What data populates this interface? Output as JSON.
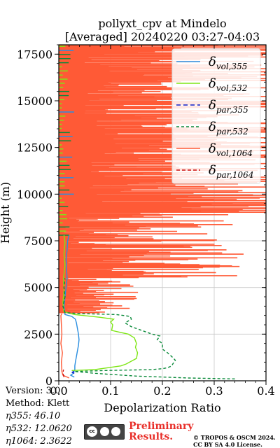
{
  "chart_data": {
    "type": "line",
    "title": "pollyxt_cpv at Mindelo",
    "subtitle": "[Averaged] 20240220 03:27-04:03",
    "xlabel": "Depolarization Ratio",
    "ylabel": "Height (m)",
    "xlim": [
      0.0,
      0.4
    ],
    "ylim": [
      0,
      18000
    ],
    "xticks": [
      "0.0",
      "0.1",
      "0.2",
      "0.3",
      "0.4"
    ],
    "yticks": [
      "0",
      "2500",
      "5000",
      "7500",
      "10000",
      "12500",
      "15000",
      "17500"
    ],
    "grid": true,
    "legend_position": "top-right",
    "series": [
      {
        "name": "δvol,355",
        "color": "#2a8ee0",
        "dash": "solid",
        "points": [
          [
            0.03,
            200
          ],
          [
            0.023,
            300
          ],
          [
            0.028,
            400
          ],
          [
            0.031,
            600
          ],
          [
            0.031,
            800
          ],
          [
            0.032,
            1000
          ],
          [
            0.034,
            1300
          ],
          [
            0.036,
            1600
          ],
          [
            0.038,
            1900
          ],
          [
            0.039,
            2200
          ],
          [
            0.038,
            2500
          ],
          [
            0.036,
            2800
          ],
          [
            0.034,
            3100
          ],
          [
            0.032,
            3300
          ],
          [
            0.025,
            3450
          ],
          [
            0.012,
            3550
          ],
          [
            0.01,
            4000
          ],
          [
            0.012,
            4500
          ],
          [
            0.014,
            5000
          ],
          [
            0.016,
            5500
          ],
          [
            0.015,
            6000
          ],
          [
            0.014,
            6500
          ],
          [
            0.016,
            7000
          ],
          [
            0.017,
            7500
          ],
          [
            0.02,
            7800
          ]
        ]
      },
      {
        "name": "δvol,532",
        "color": "#7ee615",
        "dash": "solid",
        "points": [
          [
            0.025,
            550
          ],
          [
            0.07,
            600
          ],
          [
            0.095,
            700
          ],
          [
            0.12,
            800
          ],
          [
            0.13,
            900
          ],
          [
            0.14,
            1050
          ],
          [
            0.15,
            1200
          ],
          [
            0.152,
            1500
          ],
          [
            0.148,
            1800
          ],
          [
            0.15,
            2000
          ],
          [
            0.146,
            2300
          ],
          [
            0.134,
            2500
          ],
          [
            0.118,
            2600
          ],
          [
            0.102,
            2700
          ],
          [
            0.104,
            3000
          ],
          [
            0.1,
            3150
          ],
          [
            0.106,
            3300
          ],
          [
            0.08,
            3400
          ],
          [
            0.03,
            3550
          ],
          [
            0.01,
            3700
          ],
          [
            0.008,
            4200
          ],
          [
            0.01,
            4800
          ],
          [
            0.009,
            5500
          ],
          [
            0.012,
            6200
          ],
          [
            0.01,
            6800
          ],
          [
            0.012,
            7400
          ],
          [
            0.01,
            7800
          ]
        ]
      },
      {
        "name": "δpar,355",
        "color": "#1020c8",
        "dash": "6,4",
        "points": [
          [
            0.03,
            400
          ],
          [
            0.026,
            450
          ],
          [
            0.03,
            550
          ]
        ]
      },
      {
        "name": "δpar,532",
        "color": "#0a8a3a",
        "dash": "4,3",
        "points": [
          [
            0.34,
            100
          ],
          [
            0.25,
            150
          ],
          [
            0.15,
            250
          ],
          [
            0.07,
            400
          ],
          [
            0.03,
            500
          ],
          [
            0.09,
            550
          ],
          [
            0.18,
            600
          ],
          [
            0.2,
            650
          ],
          [
            0.21,
            700
          ],
          [
            0.218,
            800
          ],
          [
            0.22,
            900
          ],
          [
            0.225,
            1100
          ],
          [
            0.218,
            1300
          ],
          [
            0.21,
            1500
          ],
          [
            0.2,
            1700
          ],
          [
            0.2,
            2000
          ],
          [
            0.19,
            2200
          ],
          [
            0.195,
            2400
          ],
          [
            0.18,
            2500
          ],
          [
            0.16,
            2700
          ],
          [
            0.14,
            2900
          ],
          [
            0.128,
            3100
          ],
          [
            0.14,
            3300
          ],
          [
            0.138,
            3450
          ],
          [
            0.11,
            3550
          ],
          [
            0.04,
            3600
          ],
          [
            0.012,
            3650
          ],
          [
            0.008,
            4000
          ],
          [
            0.012,
            4500
          ],
          [
            0.01,
            5000
          ],
          [
            0.012,
            5500
          ]
        ]
      },
      {
        "name": "δvol,1064",
        "color": "#ff5a36",
        "dash": "solid",
        "points": [
          [
            0.02,
            150
          ],
          [
            0.008,
            300
          ],
          [
            0.006,
            500
          ],
          [
            0.005,
            1000
          ],
          [
            0.007,
            1500
          ],
          [
            0.004,
            2000
          ],
          [
            0.006,
            2500
          ],
          [
            0.005,
            3000
          ],
          [
            0.004,
            3500
          ],
          [
            0.006,
            3600
          ]
        ]
      },
      {
        "name": "δpar,1064",
        "color": "#cc1010",
        "dash": "5,3",
        "points": [
          [
            0.01,
            200
          ],
          [
            0.008,
            400
          ],
          [
            0.009,
            600
          ]
        ]
      }
    ],
    "noise_spikes_1064_height_max_m": 18000,
    "noise_spikes_1064_color": "#ff5a36"
  },
  "footer": {
    "version": "Version: 3.0",
    "method": "Method: Klett",
    "eta355": "η355:  46.10",
    "eta532": "η532: 12.0620",
    "eta1064": "η1064: 2.3622",
    "preliminary_line1": "Preliminary",
    "preliminary_line2": "Results.",
    "license_line1": "© TROPOS & OSCM 2024.",
    "license_line2": "CC BY SA 4.0 License.",
    "cc_badge_icon": "cc-by-sa-icon"
  }
}
